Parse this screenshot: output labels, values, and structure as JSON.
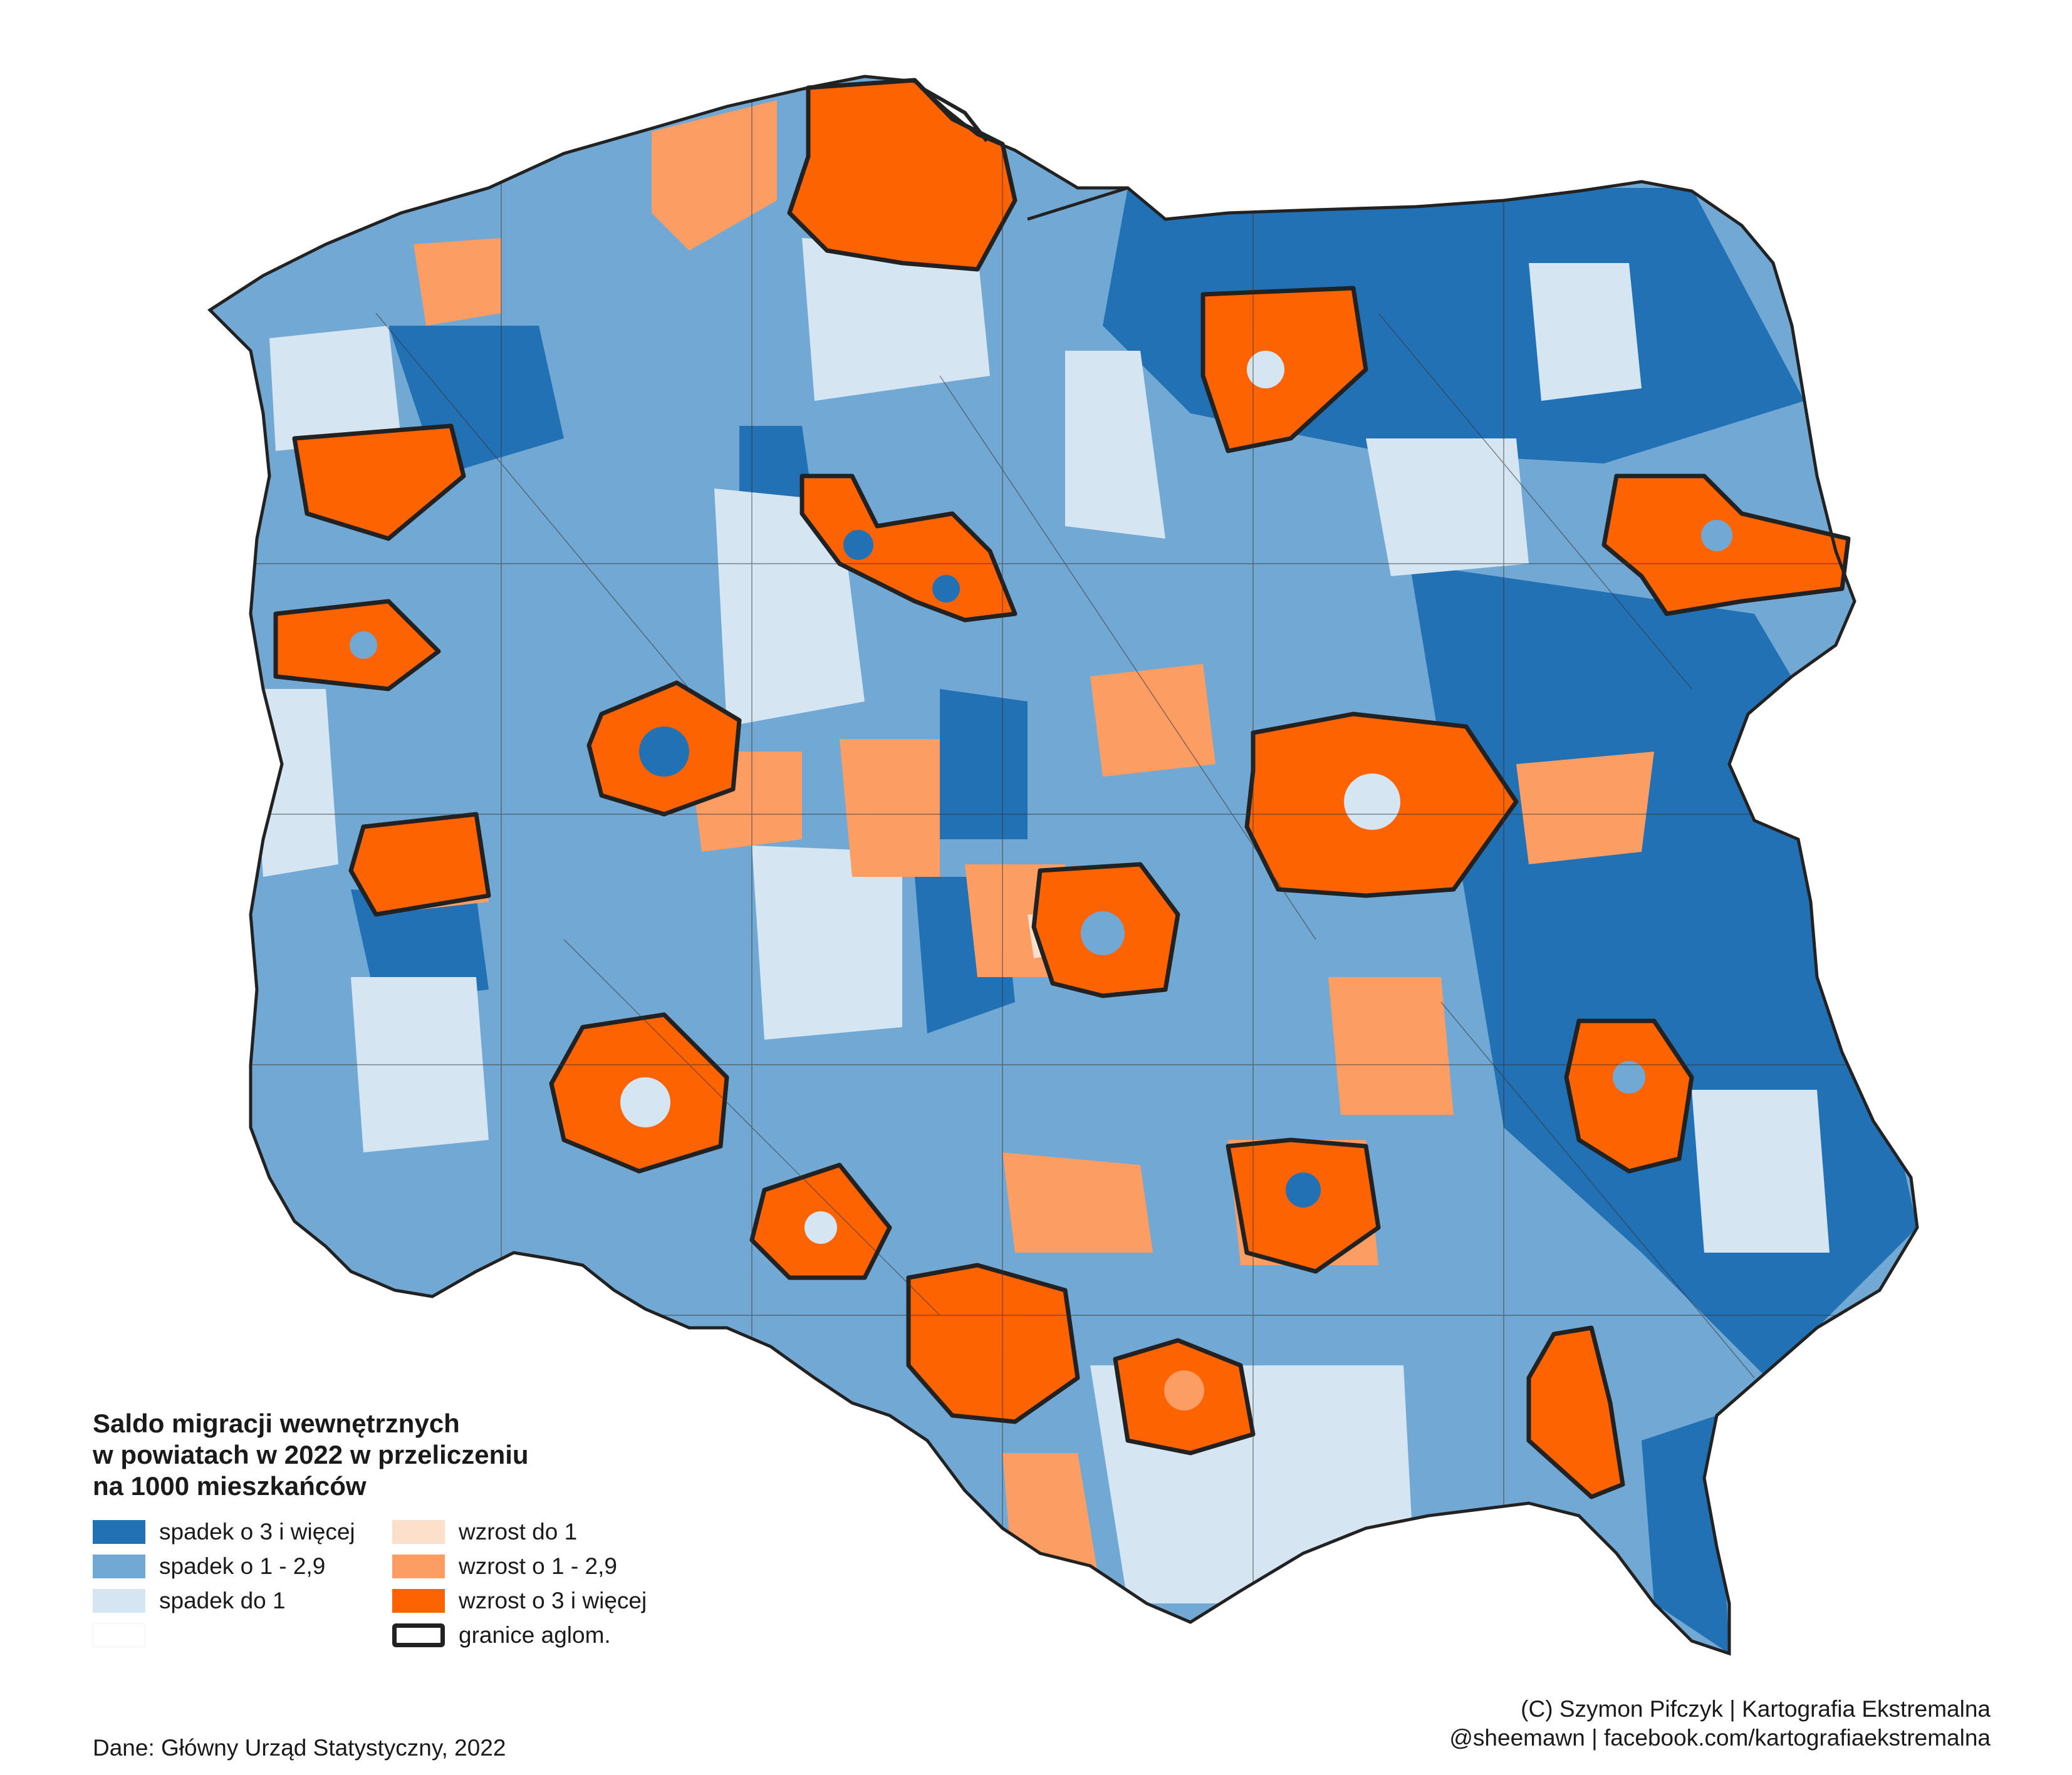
{
  "colors": {
    "strong_decrease": "#2271b5",
    "decrease": "#72a9d4",
    "slight_decrease": "#d5e5f1",
    "slight_increase": "#fde0cc",
    "increase": "#fc9d64",
    "strong_increase": "#fd6300",
    "agglomeration_border": "#222222",
    "district_border": "#333333"
  },
  "legend": {
    "title": "Saldo migracji wewnętrznych\nw powiatach w 2022 w przeliczeniu\nna 1000 mieszkańców",
    "left": [
      {
        "label": "spadek o 3 i więcej",
        "color": "#2271b5"
      },
      {
        "label": "spadek o 1 - 2,9",
        "color": "#72a9d4"
      },
      {
        "label": "spadek do 1",
        "color": "#d5e5f1"
      },
      {
        "label": "",
        "color": "#ffffff"
      }
    ],
    "right": [
      {
        "label": "wzrost do 1",
        "color": "#fde0cc"
      },
      {
        "label": "wzrost o 1 - 2,9",
        "color": "#fc9d64"
      },
      {
        "label": "wzrost o 3 i więcej",
        "color": "#fd6300"
      },
      {
        "label": "granice aglom.",
        "outline": true
      }
    ]
  },
  "source": "Dane: Główny Urząd Statystyczny, 2022",
  "credits": {
    "line1": "(C) Szymon Pifczyk | Kartografia Ekstremalna",
    "line2": "@sheemawn | facebook.com/kartografiaekstremalna"
  }
}
